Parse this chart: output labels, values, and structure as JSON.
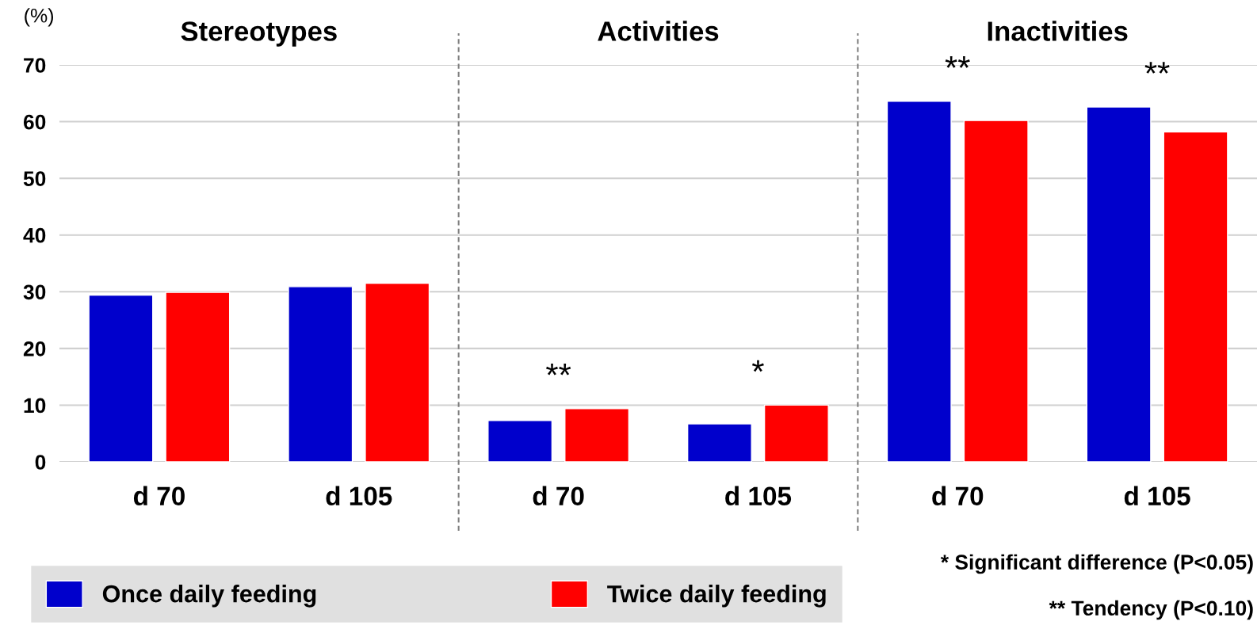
{
  "chart_data": [
    {
      "type": "bar",
      "title": "Stereotypes",
      "ylabel": "(%)",
      "categories": [
        "d 70",
        "d 105"
      ],
      "series": [
        {
          "name": "Once daily feeding",
          "color": "#0000cc",
          "values": [
            29.4,
            30.9
          ]
        },
        {
          "name": "Twice daily feeding",
          "color": "#ff0000",
          "values": [
            29.9,
            31.5
          ]
        }
      ],
      "ylim": [
        0,
        70
      ],
      "yticks": [
        0,
        10,
        20,
        30,
        40,
        50,
        60,
        70
      ],
      "grid": "y",
      "legend": "bottom"
    },
    {
      "type": "bar",
      "title": "Activities",
      "categories": [
        "d 70",
        "d 105"
      ],
      "series": [
        {
          "color": "#0000cc",
          "values": [
            7.3,
            6.7
          ]
        },
        {
          "color": "#ff0000",
          "values": [
            9.4,
            10.0
          ]
        }
      ],
      "ylim": [
        0,
        70
      ],
      "yticks": [
        0,
        10,
        20,
        30,
        40,
        50,
        60,
        70
      ],
      "grid": "y",
      "tick_labels": "x",
      "annotations": [
        "**",
        "*"
      ]
    },
    {
      "type": "bar",
      "title": "Inactivities",
      "categories": [
        "d 70",
        "d 105"
      ],
      "series": [
        {
          "color": "#0000cc",
          "values": [
            63.6,
            62.6
          ]
        },
        {
          "color": "#ff0000",
          "values": [
            60.2,
            58.2
          ]
        }
      ],
      "ylim": [
        0,
        70
      ],
      "yticks": [
        0,
        10,
        20,
        30,
        40,
        50,
        60,
        70
      ],
      "grid": "y",
      "tick_labels": "x",
      "annotations": [
        "**",
        "**",
        "* Significant difference (P<0.05)",
        "** Tendency (P<0.10)"
      ]
    }
  ]
}
